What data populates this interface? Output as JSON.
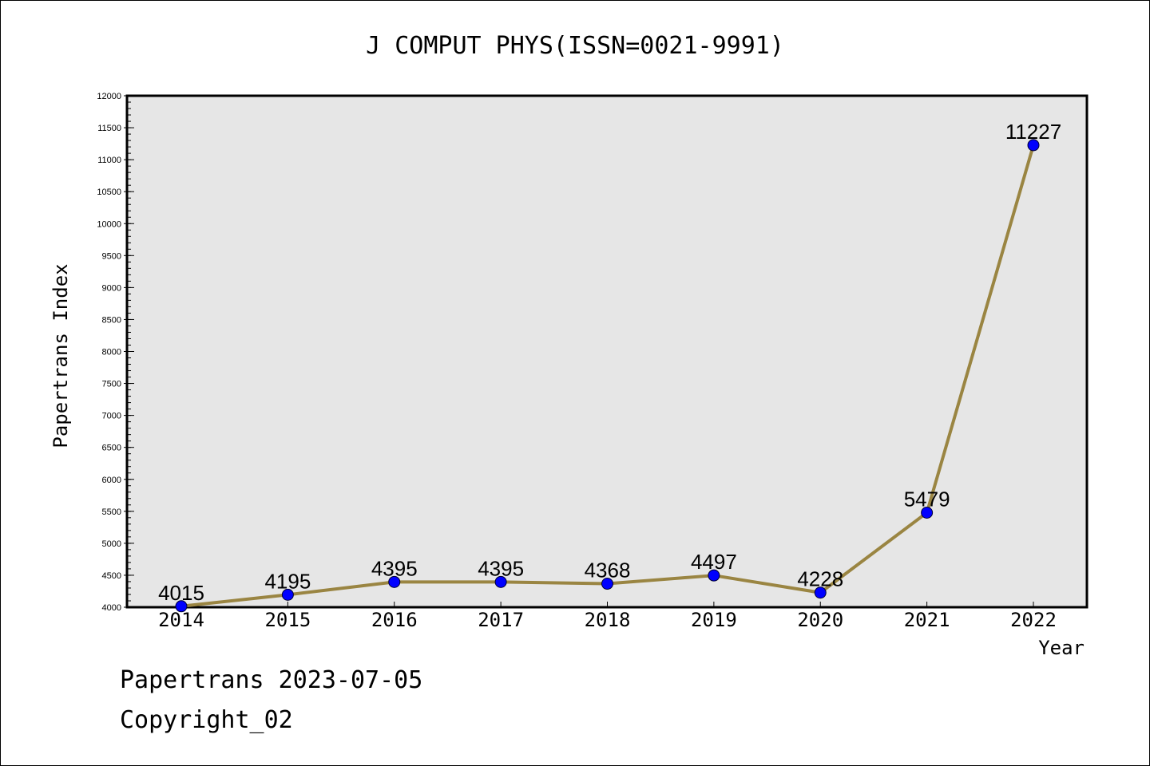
{
  "colors": {
    "plot_background": "#e6e6e6",
    "line": "#9a8542",
    "marker": "#0000ff",
    "axis": "#000000"
  },
  "chart_data": {
    "type": "line",
    "title": "J COMPUT PHYS(ISSN=0021-9991)",
    "xlabel": "Year",
    "ylabel": "Papertrans Index",
    "categories": [
      "2014",
      "2015",
      "2016",
      "2017",
      "2018",
      "2019",
      "2020",
      "2021",
      "2022"
    ],
    "series": [
      {
        "values": [
          4015,
          4195,
          4395,
          4395,
          4368,
          4497,
          4228,
          5479,
          11227
        ],
        "data_labels": [
          "4015",
          "4195",
          "4395",
          "4395",
          "4368",
          "4497",
          "4228",
          "5479",
          "11227"
        ]
      }
    ],
    "ylim": [
      4000,
      12000
    ],
    "y_major_step": 500,
    "y_minor_step": 100,
    "y_ticks": [
      "4000",
      "4500",
      "5000",
      "5500",
      "6000",
      "6500",
      "7000",
      "7500",
      "8000",
      "8500",
      "9000",
      "9500",
      "10000",
      "10500",
      "11000",
      "11500",
      "12000"
    ],
    "grid": false,
    "legend": "none"
  },
  "footer": {
    "line1": "Papertrans 2023-07-05",
    "line2": "Copyright_02"
  }
}
